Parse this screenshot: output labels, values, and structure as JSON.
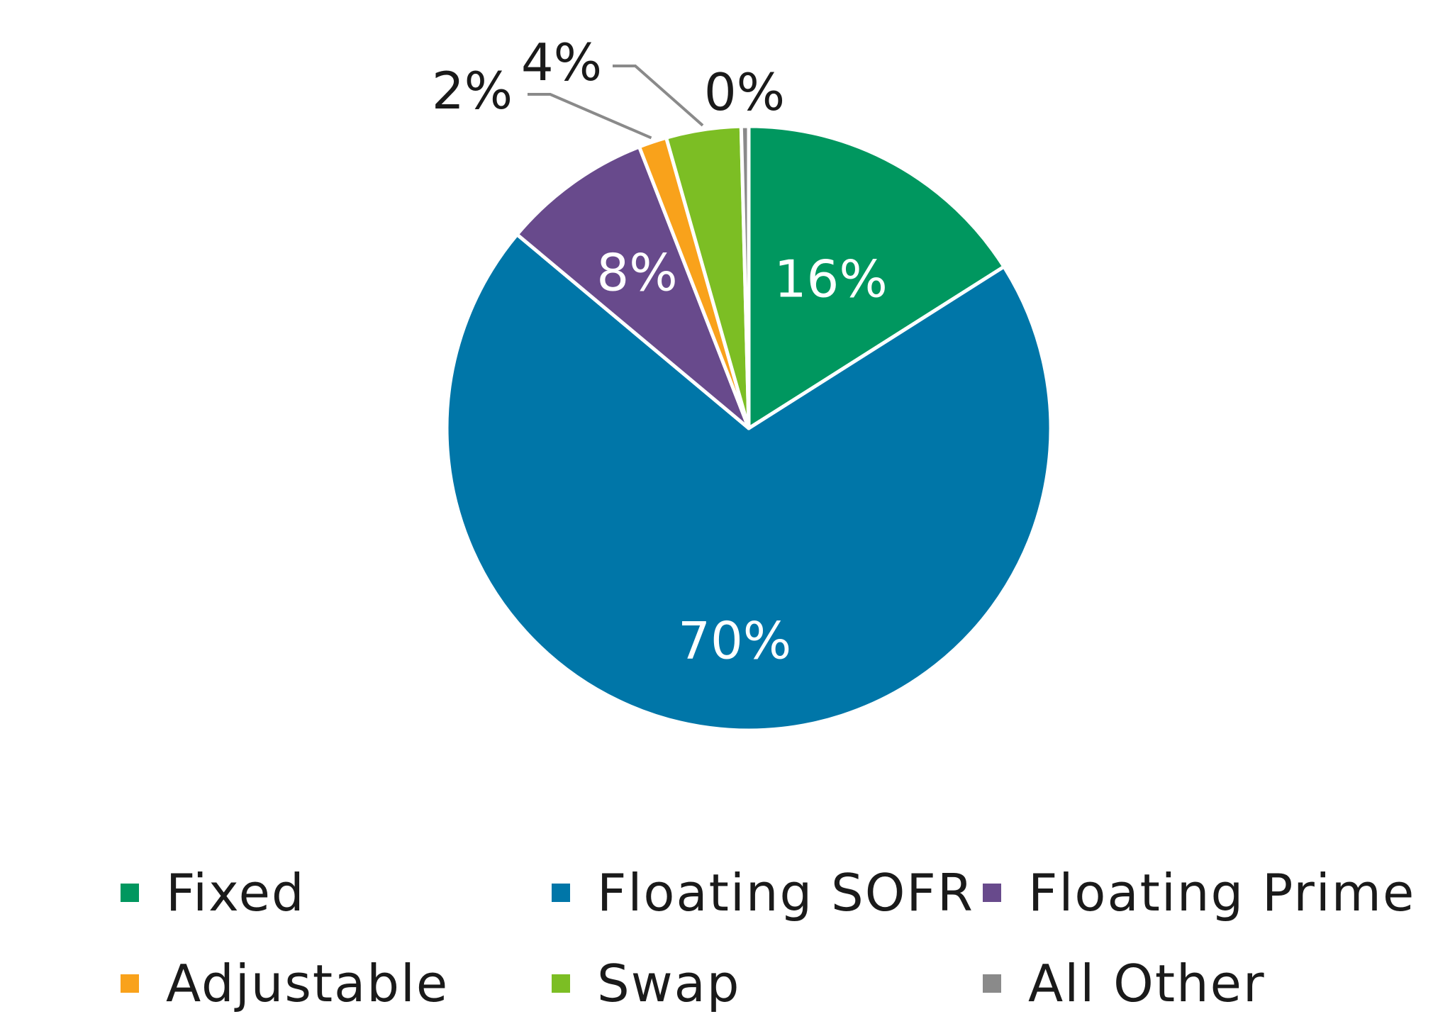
{
  "chart_data": {
    "type": "pie",
    "title": "",
    "slices": [
      {
        "name": "Fixed",
        "value": 16,
        "label": "16%",
        "color": "#00975F",
        "label_color": "#ffffff"
      },
      {
        "name": "Floating SOFR",
        "value": 70,
        "label": "70%",
        "color": "#0076A8",
        "label_color": "#ffffff"
      },
      {
        "name": "Floating Prime",
        "value": 8,
        "label": "8%",
        "color": "#684A8C",
        "label_color": "#ffffff"
      },
      {
        "name": "Adjustable",
        "value": 1.5,
        "label": "2%",
        "color": "#F9A21B",
        "label_color": "#1a1a1a"
      },
      {
        "name": "Swap",
        "value": 4,
        "label": "4%",
        "color": "#7CBE24",
        "label_color": "#1a1a1a"
      },
      {
        "name": "All Other",
        "value": 0.4,
        "label": "0%",
        "color": "#8A8A8A",
        "label_color": "#1a1a1a"
      }
    ],
    "legend": {
      "position": "bottom",
      "entries": [
        "Fixed",
        "Floating SOFR",
        "Floating Prime",
        "Adjustable",
        "Swap",
        "All Other"
      ]
    }
  }
}
